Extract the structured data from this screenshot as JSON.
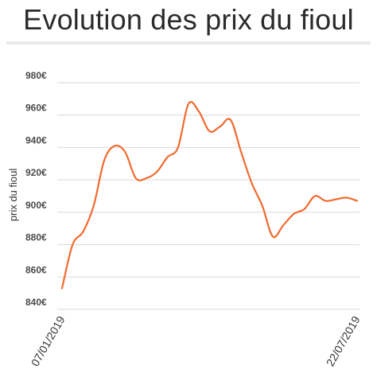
{
  "chart_data": {
    "type": "line",
    "title": "Evolution des prix du fioul",
    "xlabel": "",
    "ylabel": "prix du fioul",
    "ylim": [
      840,
      980
    ],
    "yticks": [
      840,
      860,
      880,
      900,
      920,
      940,
      960,
      980
    ],
    "ytick_labels": [
      "840€",
      "860€",
      "880€",
      "900€",
      "920€",
      "940€",
      "960€",
      "980€"
    ],
    "x_range": [
      "07/01/2019",
      "22/07/2019"
    ],
    "x_tick_labels": [
      "07/01/2019",
      "22/07/2019"
    ],
    "grid": true,
    "legend": "none",
    "line_color": "#f26a2e",
    "grid_color": "#d9d9d9",
    "series": [
      {
        "x": [
          "07/01/2019",
          "14/01/2019",
          "21/01/2019",
          "28/01/2019",
          "04/02/2019",
          "11/02/2019",
          "18/02/2019",
          "25/02/2019",
          "04/03/2019",
          "11/03/2019",
          "18/03/2019",
          "25/03/2019",
          "01/04/2019",
          "08/04/2019",
          "15/04/2019",
          "22/04/2019",
          "29/04/2019",
          "06/05/2019",
          "13/05/2019",
          "20/05/2019",
          "27/05/2019",
          "03/06/2019",
          "10/06/2019",
          "17/06/2019",
          "24/06/2019",
          "01/07/2019",
          "08/07/2019",
          "15/07/2019",
          "22/07/2019"
        ],
        "values": [
          853,
          880,
          888,
          904,
          932,
          941,
          937,
          921,
          921,
          925,
          934,
          940,
          967,
          962,
          950,
          953,
          957,
          937,
          918,
          904,
          885,
          892,
          899,
          902,
          910,
          907,
          908,
          909,
          907
        ]
      }
    ]
  }
}
